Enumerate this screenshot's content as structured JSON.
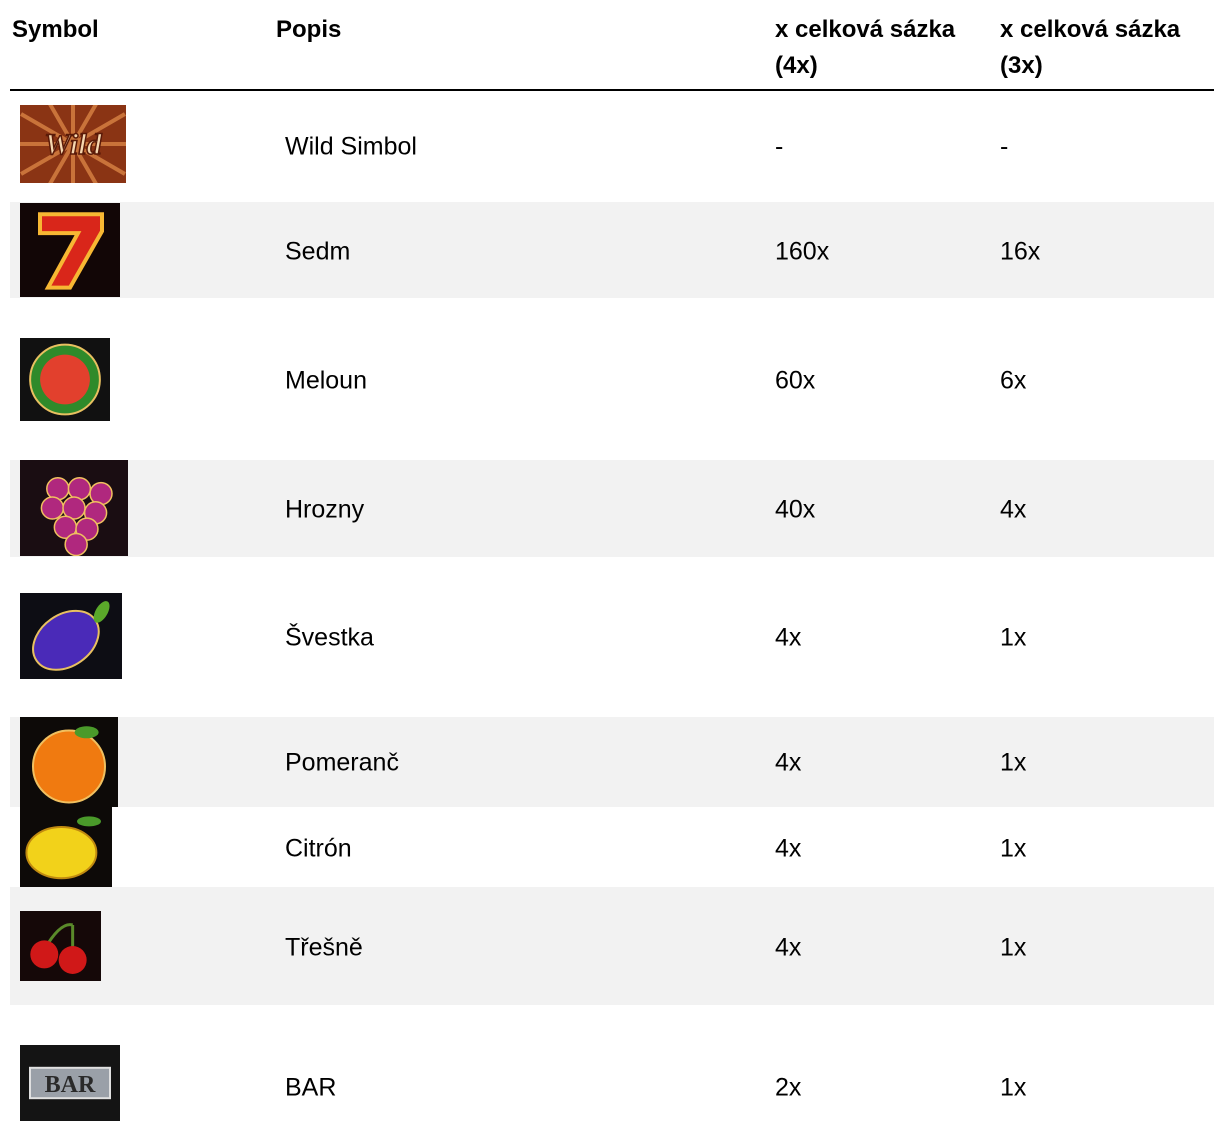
{
  "table": {
    "header": [
      "Symbol",
      "Popis",
      "x celková sázka (4x)",
      "x celková sázka (3x)"
    ],
    "rows": [
      {
        "icon_text": "Wild",
        "name": "Wild Simbol",
        "pay4": "-",
        "pay3": "-"
      },
      {
        "name": "Sedm",
        "pay4": "160x",
        "pay3": "16x"
      },
      {
        "name": "Meloun",
        "pay4": "60x",
        "pay3": "6x"
      },
      {
        "name": "Hrozny",
        "pay4": "40x",
        "pay3": "4x"
      },
      {
        "name": "Švestka",
        "pay4": "4x",
        "pay3": "1x"
      },
      {
        "name": "Pomeranč",
        "pay4": "4x",
        "pay3": "1x"
      },
      {
        "name": "Citrón",
        "pay4": "4x",
        "pay3": "1x"
      },
      {
        "name": "Třešně",
        "pay4": "4x",
        "pay3": "1x"
      },
      {
        "icon_text": "BAR",
        "name": "BAR",
        "pay4": "2x",
        "pay3": "1x"
      }
    ]
  }
}
